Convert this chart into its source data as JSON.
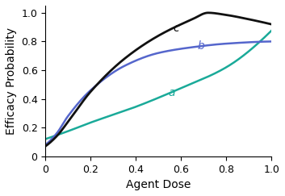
{
  "title": "",
  "xlabel": "Agent Dose",
  "ylabel": "Efficacy Probability",
  "xlim": [
    0,
    1.0
  ],
  "ylim": [
    0,
    1.05
  ],
  "xticks": [
    0.0,
    0.2,
    0.4,
    0.6,
    0.8,
    1.0
  ],
  "yticks": [
    0.0,
    0.2,
    0.4,
    0.6,
    0.8,
    1.0
  ],
  "curve_a": {
    "label": "a",
    "color": "#1aaa99",
    "linewidth": 1.8,
    "ctrl_x": [
      0.0,
      0.1,
      0.2,
      0.4,
      0.6,
      0.8,
      1.0
    ],
    "ctrl_y": [
      0.12,
      0.175,
      0.235,
      0.345,
      0.475,
      0.62,
      0.875
    ]
  },
  "curve_b": {
    "label": "b",
    "color": "#5566cc",
    "linewidth": 1.8,
    "ctrl_x": [
      0.0,
      0.05,
      0.1,
      0.2,
      0.35,
      0.5,
      0.65,
      0.8,
      1.0
    ],
    "ctrl_y": [
      0.08,
      0.16,
      0.28,
      0.46,
      0.63,
      0.72,
      0.76,
      0.785,
      0.8
    ]
  },
  "curve_c": {
    "label": "c",
    "color": "#111111",
    "linewidth": 2.0,
    "ctrl_x": [
      0.0,
      0.05,
      0.1,
      0.2,
      0.35,
      0.5,
      0.65,
      0.72,
      0.8,
      0.9,
      1.0
    ],
    "ctrl_y": [
      0.07,
      0.14,
      0.24,
      0.45,
      0.68,
      0.84,
      0.955,
      1.0,
      0.985,
      0.955,
      0.92
    ]
  },
  "label_positions": {
    "a": [
      0.56,
      0.44
    ],
    "b": [
      0.69,
      0.77
    ],
    "c": [
      0.58,
      0.895
    ]
  },
  "label_fontsize": 10,
  "axis_fontsize": 10,
  "tick_fontsize": 9,
  "figsize": [
    3.53,
    2.43
  ],
  "dpi": 100
}
